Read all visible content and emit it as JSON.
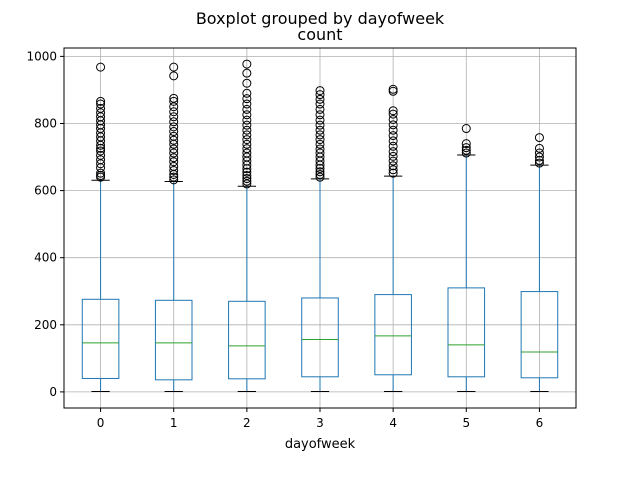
{
  "chart_data": {
    "type": "boxplot",
    "title": "Boxplot grouped by dayofweek",
    "subtitle": "count",
    "xlabel": "dayofweek",
    "ylabel": "",
    "ylim": [
      -48,
      1025
    ],
    "yticks": [
      0,
      200,
      400,
      600,
      800,
      1000
    ],
    "grid": true,
    "categories": [
      "0",
      "1",
      "2",
      "3",
      "4",
      "5",
      "6"
    ],
    "boxes": [
      {
        "category": "0",
        "whisker_low": 1,
        "q1": 40,
        "median": 146,
        "q3": 276,
        "whisker_high": 631,
        "outliers": [
          640,
          645,
          652,
          668,
          680,
          692,
          705,
          718,
          726,
          735,
          748,
          760,
          772,
          785,
          796,
          808,
          820,
          832,
          845,
          858,
          866,
          968
        ]
      },
      {
        "category": "1",
        "whisker_low": 1,
        "q1": 36,
        "median": 146,
        "q3": 273,
        "whisker_high": 627,
        "outliers": [
          632,
          640,
          648,
          660,
          672,
          686,
          698,
          712,
          724,
          738,
          750,
          762,
          776,
          790,
          805,
          820,
          835,
          850,
          866,
          875,
          942,
          968
        ]
      },
      {
        "category": "2",
        "whisker_low": 1,
        "q1": 39,
        "median": 137,
        "q3": 270,
        "whisker_high": 613,
        "outliers": [
          620,
          628,
          636,
          645,
          655,
          665,
          676,
          688,
          700,
          712,
          725,
          738,
          752,
          766,
          780,
          795,
          810,
          826,
          842,
          858,
          874,
          890,
          920,
          950,
          977
        ]
      },
      {
        "category": "3",
        "whisker_low": 1,
        "q1": 45,
        "median": 156,
        "q3": 280,
        "whisker_high": 635,
        "outliers": [
          640,
          648,
          656,
          666,
          676,
          688,
          700,
          712,
          724,
          738,
          752,
          766,
          780,
          795,
          810,
          826,
          842,
          858,
          872,
          886,
          898
        ]
      },
      {
        "category": "4",
        "whisker_low": 1,
        "q1": 51,
        "median": 167,
        "q3": 290,
        "whisker_high": 643,
        "outliers": [
          652,
          662,
          674,
          688,
          702,
          716,
          732,
          748,
          764,
          780,
          796,
          812,
          828,
          838,
          896,
          902
        ]
      },
      {
        "category": "5",
        "whisker_low": 1,
        "q1": 45,
        "median": 140,
        "q3": 310,
        "whisker_high": 706,
        "outliers": [
          712,
          720,
          728,
          740,
          785
        ]
      },
      {
        "category": "6",
        "whisker_low": 1,
        "q1": 42,
        "median": 119,
        "q3": 299,
        "whisker_high": 676,
        "outliers": [
          682,
          690,
          700,
          712,
          726,
          758
        ]
      }
    ],
    "colors": {
      "box": "#1f77b4",
      "median": "#2ca02c",
      "whisker_cap": "#000000",
      "grid": "#b0b0b0",
      "outlier": "#000000"
    }
  }
}
